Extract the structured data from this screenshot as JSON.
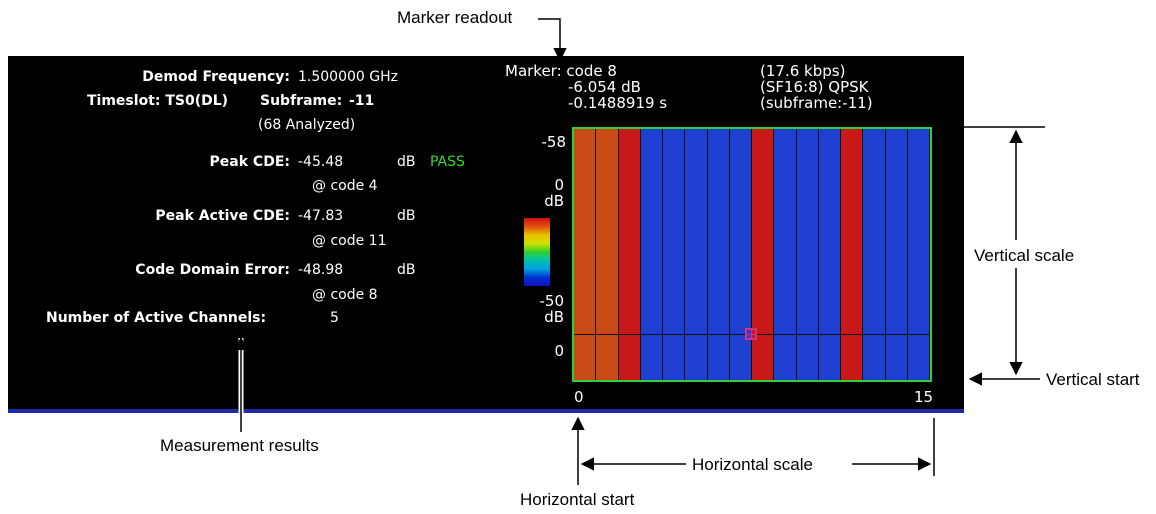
{
  "callouts": {
    "marker_readout": "Marker readout",
    "measurement_results": "Measurement results",
    "vertical_scale": "Vertical scale",
    "vertical_start": "Vertical start",
    "horizontal_scale": "Horizontal scale",
    "horizontal_start": "Horizontal start"
  },
  "results": {
    "demod_frequency_label": "Demod Frequency:",
    "demod_frequency_value": "1.500000 GHz",
    "timeslot_label": "Timeslot: TS0(DL)",
    "subframe_label": "Subframe:",
    "subframe_value": "-11",
    "analyzed": "(68 Analyzed)",
    "peak_cde_label": "Peak CDE:",
    "peak_cde_value": "-45.48",
    "peak_cde_unit": "dB",
    "peak_cde_status": "PASS",
    "peak_cde_code": "@ code  4",
    "peak_active_cde_label": "Peak Active CDE:",
    "peak_active_cde_value": "-47.83",
    "peak_active_cde_unit": "dB",
    "peak_active_cde_code": "@ code  11",
    "code_domain_error_label": "Code Domain Error:",
    "code_domain_error_value": "-48.98",
    "code_domain_error_unit": "dB",
    "code_domain_error_code": "@ code  8",
    "active_channels_label": "Number of Active Channels:",
    "active_channels_value": "5"
  },
  "marker": {
    "line1": "Marker: code 8",
    "line2": "-6.054 dB",
    "line3": "-0.1488919 s",
    "rate": "(17.6 kbps)",
    "sf": "(SF16:8) QPSK",
    "subframe": "(subframe:-11)"
  },
  "scale": {
    "top_value": "-58",
    "top_db_value": "0",
    "top_db_unit": "dB",
    "bottom_db_value": "-50",
    "bottom_db_unit": "dB",
    "bottom_value": "0"
  },
  "chart_data": {
    "type": "heatmap",
    "x_tick_labels": [
      "0",
      "15"
    ],
    "xlim": [
      0,
      15
    ],
    "codes": [
      0,
      1,
      2,
      3,
      4,
      5,
      6,
      7,
      8,
      9,
      10,
      11,
      12,
      13,
      14,
      15
    ],
    "column_colors": [
      "#c84a14",
      "#c84a14",
      "#c81818",
      "#1e3fd0",
      "#1e3fd0",
      "#1e3fd0",
      "#1e3fd0",
      "#1e3fd0",
      "#c81818",
      "#1e3fd0",
      "#1e3fd0",
      "#1e3fd0",
      "#c81818",
      "#1e3fd0",
      "#1e3fd0",
      "#1e3fd0"
    ],
    "marker_code": 8
  },
  "colors": {
    "screen": "#000000",
    "plot_border": "#2fcf3a",
    "pass": "#2fe02f",
    "marker": "#d83080"
  }
}
